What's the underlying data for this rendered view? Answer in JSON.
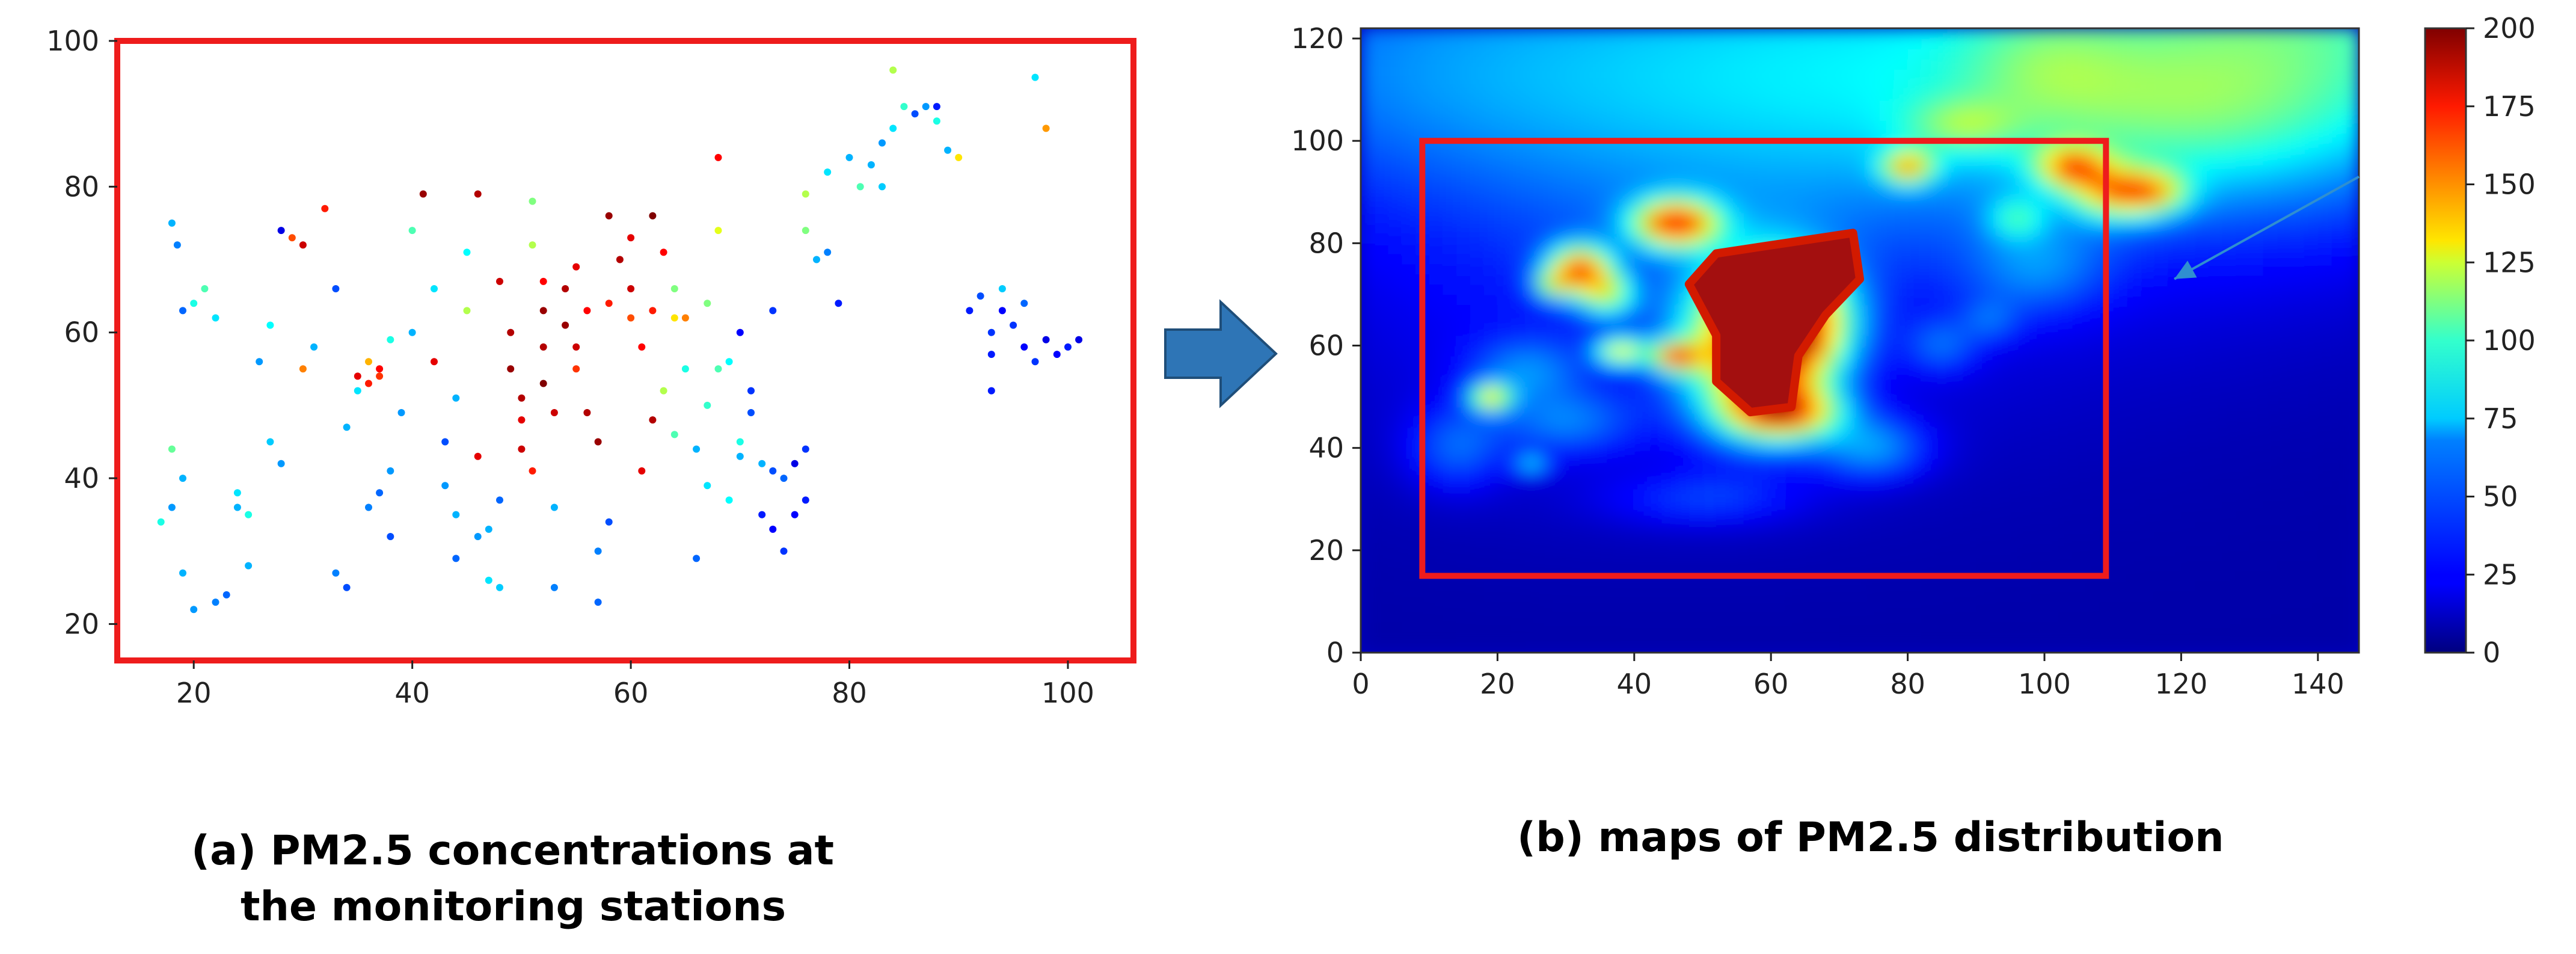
{
  "chart_data": [
    {
      "type": "scatter",
      "caption": [
        "(a)  PM2.5 concentrations at",
        "the monitoring stations"
      ],
      "xlim": [
        13,
        106
      ],
      "ylim": [
        15,
        100
      ],
      "xticks": [
        20,
        40,
        60,
        80,
        100
      ],
      "yticks": [
        20,
        40,
        60,
        80,
        100
      ],
      "grid": false,
      "frame_color": "#ee1c1c",
      "color_scale": {
        "min": 0,
        "max": 200,
        "colormap": "jet"
      },
      "points": [
        [
          18,
          75,
          60
        ],
        [
          18.5,
          72,
          50
        ],
        [
          19,
          63,
          45
        ],
        [
          20,
          64,
          80
        ],
        [
          21,
          66,
          90
        ],
        [
          22,
          62,
          70
        ],
        [
          18,
          44,
          95
        ],
        [
          19,
          40,
          60
        ],
        [
          18,
          36,
          55
        ],
        [
          17,
          34,
          80
        ],
        [
          19,
          27,
          60
        ],
        [
          20,
          22,
          55
        ],
        [
          22,
          23,
          50
        ],
        [
          23,
          24,
          45
        ],
        [
          24,
          36,
          60
        ],
        [
          24,
          38,
          70
        ],
        [
          25,
          35,
          80
        ],
        [
          25,
          28,
          60
        ],
        [
          26,
          56,
          55
        ],
        [
          27,
          61,
          75
        ],
        [
          27,
          45,
          65
        ],
        [
          28,
          42,
          55
        ],
        [
          28,
          74,
          20
        ],
        [
          29,
          73,
          160
        ],
        [
          30,
          72,
          185
        ],
        [
          30,
          55,
          150
        ],
        [
          31,
          58,
          60
        ],
        [
          32,
          77,
          170
        ],
        [
          33,
          66,
          40
        ],
        [
          33,
          27,
          50
        ],
        [
          34,
          25,
          40
        ],
        [
          34,
          47,
          60
        ],
        [
          35,
          52,
          70
        ],
        [
          35,
          54,
          180
        ],
        [
          36,
          56,
          140
        ],
        [
          36,
          53,
          170
        ],
        [
          37,
          55,
          175
        ],
        [
          37,
          54,
          165
        ],
        [
          38,
          41,
          55
        ],
        [
          36,
          36,
          50
        ],
        [
          37,
          38,
          45
        ],
        [
          38,
          32,
          40
        ],
        [
          38,
          59,
          80
        ],
        [
          39,
          49,
          55
        ],
        [
          40,
          60,
          60
        ],
        [
          40,
          74,
          90
        ],
        [
          41,
          79,
          195
        ],
        [
          42,
          66,
          70
        ],
        [
          42,
          56,
          180
        ],
        [
          43,
          39,
          55
        ],
        [
          43,
          45,
          40
        ],
        [
          44,
          29,
          45
        ],
        [
          44,
          35,
          60
        ],
        [
          44,
          51,
          60
        ],
        [
          45,
          71,
          75
        ],
        [
          45,
          63,
          110
        ],
        [
          46,
          79,
          190
        ],
        [
          46,
          43,
          180
        ],
        [
          46,
          32,
          55
        ],
        [
          47,
          33,
          60
        ],
        [
          47,
          26,
          70
        ],
        [
          48,
          25,
          65
        ],
        [
          48,
          37,
          45
        ],
        [
          48,
          67,
          185
        ],
        [
          49,
          60,
          190
        ],
        [
          49,
          55,
          195
        ],
        [
          50,
          51,
          190
        ],
        [
          50,
          48,
          180
        ],
        [
          50,
          44,
          185
        ],
        [
          51,
          41,
          170
        ],
        [
          51,
          78,
          100
        ],
        [
          51,
          72,
          110
        ],
        [
          52,
          67,
          175
        ],
        [
          52,
          63,
          195
        ],
        [
          52,
          58,
          190
        ],
        [
          52,
          53,
          200
        ],
        [
          53,
          49,
          185
        ],
        [
          53,
          36,
          60
        ],
        [
          53,
          25,
          50
        ],
        [
          54,
          66,
          190
        ],
        [
          54,
          61,
          195
        ],
        [
          55,
          58,
          185
        ],
        [
          55,
          55,
          165
        ],
        [
          55,
          69,
          180
        ],
        [
          56,
          63,
          175
        ],
        [
          56,
          49,
          190
        ],
        [
          57,
          45,
          195
        ],
        [
          57,
          30,
          50
        ],
        [
          57,
          23,
          45
        ],
        [
          58,
          34,
          40
        ],
        [
          58,
          64,
          170
        ],
        [
          58,
          76,
          195
        ],
        [
          59,
          70,
          190
        ],
        [
          60,
          73,
          180
        ],
        [
          60,
          66,
          185
        ],
        [
          60,
          62,
          160
        ],
        [
          61,
          58,
          175
        ],
        [
          61,
          41,
          180
        ],
        [
          62,
          76,
          200
        ],
        [
          62,
          63,
          170
        ],
        [
          62,
          48,
          190
        ],
        [
          63,
          71,
          175
        ],
        [
          63,
          52,
          110
        ],
        [
          64,
          66,
          100
        ],
        [
          64,
          62,
          130
        ],
        [
          64,
          46,
          90
        ],
        [
          65,
          55,
          80
        ],
        [
          65,
          62,
          150
        ],
        [
          66,
          44,
          60
        ],
        [
          66,
          29,
          45
        ],
        [
          67,
          64,
          100
        ],
        [
          67,
          50,
          85
        ],
        [
          67,
          39,
          70
        ],
        [
          68,
          55,
          90
        ],
        [
          68,
          74,
          120
        ],
        [
          68,
          84,
          175
        ],
        [
          69,
          37,
          75
        ],
        [
          69,
          56,
          75
        ],
        [
          70,
          43,
          60
        ],
        [
          70,
          45,
          80
        ],
        [
          70,
          60,
          25
        ],
        [
          71,
          49,
          40
        ],
        [
          71,
          52,
          35
        ],
        [
          72,
          42,
          60
        ],
        [
          72,
          35,
          30
        ],
        [
          73,
          33,
          25
        ],
        [
          73,
          41,
          40
        ],
        [
          73,
          63,
          35
        ],
        [
          74,
          40,
          45
        ],
        [
          74,
          30,
          35
        ],
        [
          75,
          35,
          25
        ],
        [
          75,
          42,
          20
        ],
        [
          76,
          37,
          30
        ],
        [
          76,
          44,
          35
        ],
        [
          76,
          79,
          110
        ],
        [
          76,
          74,
          100
        ],
        [
          77,
          70,
          60
        ],
        [
          78,
          71,
          50
        ],
        [
          78,
          82,
          70
        ],
        [
          79,
          64,
          30
        ],
        [
          80,
          84,
          60
        ],
        [
          81,
          80,
          90
        ],
        [
          82,
          83,
          60
        ],
        [
          83,
          86,
          55
        ],
        [
          83,
          80,
          65
        ],
        [
          84,
          88,
          70
        ],
        [
          84,
          96,
          110
        ],
        [
          85,
          91,
          85
        ],
        [
          86,
          90,
          40
        ],
        [
          87,
          91,
          55
        ],
        [
          88,
          89,
          80
        ],
        [
          88,
          91,
          30
        ],
        [
          89,
          85,
          60
        ],
        [
          90,
          84,
          130
        ],
        [
          91,
          63,
          30
        ],
        [
          92,
          65,
          40
        ],
        [
          93,
          60,
          35
        ],
        [
          93,
          57,
          30
        ],
        [
          93,
          52,
          30
        ],
        [
          94,
          66,
          65
        ],
        [
          94,
          63,
          25
        ],
        [
          95,
          61,
          35
        ],
        [
          96,
          64,
          45
        ],
        [
          96,
          58,
          25
        ],
        [
          97,
          56,
          35
        ],
        [
          97,
          95,
          70
        ],
        [
          98,
          88,
          145
        ],
        [
          98,
          59,
          20
        ],
        [
          99,
          57,
          25
        ],
        [
          100,
          58,
          30
        ],
        [
          101,
          59,
          20
        ]
      ]
    },
    {
      "type": "heatmap",
      "caption": "(b) maps of PM2.5 distribution",
      "xlim": [
        0,
        146
      ],
      "ylim": [
        0,
        122
      ],
      "xticks": [
        0,
        20,
        40,
        60,
        80,
        100,
        120,
        140
      ],
      "yticks": [
        0,
        20,
        40,
        60,
        80,
        100,
        120
      ],
      "colorbar_ticks": [
        0,
        25,
        50,
        75,
        100,
        125,
        150,
        175,
        200
      ],
      "colormap": "jet",
      "value_range": [
        0,
        200
      ],
      "highlight_box": {
        "x0": 9,
        "x1": 109,
        "y0": 15,
        "y1": 100,
        "color": "#ee1c1c"
      },
      "arrow": {
        "from": [
          146,
          93
        ],
        "to": [
          119,
          73
        ],
        "color": "#2f8fd0"
      },
      "background_field": [
        {
          "x": 80,
          "y": 115,
          "w": 65,
          "h": 30,
          "v": 40
        },
        {
          "x": 60,
          "y": 105,
          "w": 75,
          "h": 50,
          "v": 25
        },
        {
          "x": 140,
          "y": 125,
          "w": 35,
          "h": 35,
          "v": 60
        },
        {
          "x": 118,
          "y": 105,
          "w": 25,
          "h": 14,
          "v": 25
        },
        {
          "x": 100,
          "y": 115,
          "w": 12,
          "h": 12,
          "v": 20
        },
        {
          "x": 2,
          "y": 115,
          "w": 40,
          "h": 25,
          "v": 20
        },
        {
          "x": 40,
          "y": 60,
          "w": 38,
          "h": 30,
          "v": 10
        }
      ],
      "blobs": [
        {
          "x": 58,
          "y": 60,
          "w": 10,
          "h": 15,
          "v": 140
        },
        {
          "x": 63,
          "y": 65,
          "w": 8,
          "h": 10,
          "v": 110
        },
        {
          "x": 62,
          "y": 47,
          "w": 8,
          "h": 5,
          "v": 110
        },
        {
          "x": 46,
          "y": 84,
          "w": 6,
          "h": 4.5,
          "v": 135
        },
        {
          "x": 32,
          "y": 75,
          "w": 4.5,
          "h": 4.5,
          "v": 125
        },
        {
          "x": 36,
          "y": 70,
          "w": 4,
          "h": 4,
          "v": 70
        },
        {
          "x": 38,
          "y": 59,
          "w": 3.5,
          "h": 2.5,
          "v": 95
        },
        {
          "x": 46,
          "y": 58,
          "w": 3.5,
          "h": 2.8,
          "v": 110
        },
        {
          "x": 19,
          "y": 50,
          "w": 3,
          "h": 2.5,
          "v": 95
        },
        {
          "x": 28,
          "y": 72,
          "w": 2.5,
          "h": 2.5,
          "v": 60
        },
        {
          "x": 25,
          "y": 37,
          "w": 2.5,
          "h": 2,
          "v": 45
        },
        {
          "x": 80,
          "y": 95,
          "w": 3.5,
          "h": 3,
          "v": 90
        },
        {
          "x": 104,
          "y": 95,
          "w": 5,
          "h": 4,
          "v": 90
        },
        {
          "x": 110,
          "y": 90,
          "w": 6,
          "h": 5,
          "v": 80
        },
        {
          "x": 116,
          "y": 90,
          "w": 5,
          "h": 4,
          "v": 70
        },
        {
          "x": 99,
          "y": 75,
          "w": 10,
          "h": 9,
          "v": 25
        },
        {
          "x": 85,
          "y": 60,
          "w": 5,
          "h": 5,
          "v": 25
        },
        {
          "x": 92,
          "y": 65,
          "w": 4,
          "h": 4,
          "v": 20
        },
        {
          "x": 75,
          "y": 40,
          "w": 8,
          "h": 6,
          "v": 40
        },
        {
          "x": 14,
          "y": 40,
          "w": 7,
          "h": 8,
          "v": 30
        },
        {
          "x": 24,
          "y": 55,
          "w": 8,
          "h": 6,
          "v": 30
        },
        {
          "x": 50,
          "y": 30,
          "w": 14,
          "h": 5,
          "v": 22
        },
        {
          "x": 30,
          "y": 45,
          "w": 10,
          "h": 6,
          "v": 30
        },
        {
          "x": 88,
          "y": 103,
          "w": 8,
          "h": 5,
          "v": 35
        },
        {
          "x": 96,
          "y": 85,
          "w": 4,
          "h": 4,
          "v": 40
        }
      ],
      "core": [
        [
          52,
          78
        ],
        [
          62,
          80
        ],
        [
          72,
          82
        ],
        [
          73,
          73
        ],
        [
          68,
          66
        ],
        [
          64,
          58
        ],
        [
          63,
          48
        ],
        [
          57,
          47
        ],
        [
          52,
          53
        ],
        [
          52,
          62
        ],
        [
          48,
          72
        ]
      ]
    }
  ]
}
